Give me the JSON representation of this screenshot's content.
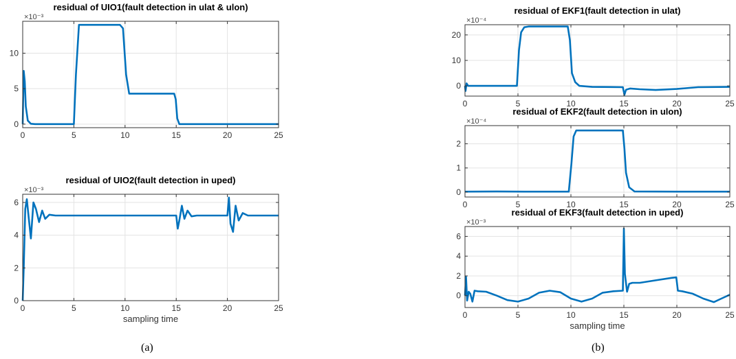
{
  "figure": {
    "caption_a": "(a)",
    "caption_b": "(b)"
  },
  "chart_data": [
    {
      "id": "uio1",
      "type": "line",
      "title": "residual of UIO1(fault detection in ulat & ulon)",
      "xlabel": "",
      "ylabel": "",
      "exponent_label": "×10⁻³",
      "xlim": [
        0,
        25
      ],
      "ylim": [
        -0.5,
        14.5
      ],
      "xticks": [
        0,
        5,
        10,
        15,
        20,
        25
      ],
      "yticks": [
        0,
        5,
        10
      ],
      "grid": true,
      "series": [
        {
          "x": [
            0,
            0.1,
            0.2,
            0.3,
            0.5,
            0.8,
            1.2,
            2,
            5,
            5.2,
            5.5,
            6,
            9.5,
            9.8,
            10.1,
            10.4,
            12,
            14.8,
            14.95,
            15.1,
            15.3,
            20,
            25
          ],
          "y": [
            0,
            7.5,
            6.0,
            2.5,
            0.5,
            0.05,
            0,
            0,
            0,
            7,
            14,
            14,
            14,
            13.5,
            7,
            4.3,
            4.3,
            4.3,
            3.5,
            0.8,
            0,
            0,
            0
          ]
        }
      ]
    },
    {
      "id": "uio2",
      "type": "line",
      "title": "residual of UIO2(fault detection in uped)",
      "xlabel": "sampling time",
      "ylabel": "",
      "exponent_label": "×10⁻³",
      "xlim": [
        0,
        25
      ],
      "ylim": [
        0,
        6.5
      ],
      "xticks": [
        0,
        5,
        10,
        15,
        20,
        25
      ],
      "yticks": [
        0,
        2,
        4,
        6
      ],
      "grid": true,
      "series": [
        {
          "x": [
            0,
            0.1,
            0.25,
            0.4,
            0.6,
            0.8,
            1.05,
            1.3,
            1.6,
            1.9,
            2.2,
            2.6,
            3.2,
            15,
            15.15,
            15.3,
            15.55,
            15.8,
            16.1,
            16.5,
            17,
            20,
            20.15,
            20.3,
            20.55,
            20.8,
            21.1,
            21.5,
            22,
            25
          ],
          "y": [
            0,
            2.0,
            5.6,
            6.2,
            5.0,
            3.8,
            6.0,
            5.6,
            4.8,
            5.5,
            5.0,
            5.25,
            5.2,
            5.2,
            4.4,
            4.9,
            5.8,
            5.0,
            5.5,
            5.15,
            5.2,
            5.2,
            6.3,
            4.7,
            4.2,
            5.8,
            4.9,
            5.35,
            5.2,
            5.2
          ]
        }
      ]
    },
    {
      "id": "ekf1",
      "type": "line",
      "title": "residual of EKF1(fault detection in ulat)",
      "xlabel": "",
      "ylabel": "",
      "exponent_label": "×10⁻⁴",
      "xlim": [
        0,
        25
      ],
      "ylim": [
        -4,
        24
      ],
      "xticks": [
        0,
        5,
        10,
        15,
        20,
        25
      ],
      "yticks": [
        0,
        10,
        20
      ],
      "grid": true,
      "series": [
        {
          "x": [
            0,
            0.05,
            0.15,
            0.3,
            2,
            4.9,
            5.1,
            5.3,
            5.6,
            6,
            9.7,
            9.9,
            10.1,
            10.4,
            10.8,
            12,
            14.9,
            15.05,
            15.2,
            15.6,
            16.5,
            18,
            20,
            22,
            25
          ],
          "y": [
            0,
            -2,
            1,
            0,
            0,
            0,
            14,
            21,
            23,
            23.3,
            23.3,
            18,
            5,
            1.5,
            0,
            -0.4,
            -0.5,
            -3.5,
            -1.5,
            -1.0,
            -1.3,
            -1.6,
            -1.2,
            -0.5,
            -0.4
          ]
        }
      ]
    },
    {
      "id": "ekf2",
      "type": "line",
      "title": "residual of EKF2(fault detection in ulon)",
      "xlabel": "",
      "ylabel": "",
      "exponent_label": "×10⁻⁴",
      "xlim": [
        0,
        25
      ],
      "ylim": [
        -0.2,
        2.75
      ],
      "xticks": [
        0,
        5,
        10,
        15,
        20,
        25
      ],
      "yticks": [
        0,
        1,
        2
      ],
      "grid": true,
      "series": [
        {
          "x": [
            0,
            3,
            6,
            9.8,
            10.05,
            10.25,
            10.5,
            11,
            14.9,
            15.05,
            15.2,
            15.5,
            16,
            20,
            25
          ],
          "y": [
            0.02,
            0.03,
            0.02,
            0.02,
            1.2,
            2.3,
            2.55,
            2.55,
            2.55,
            1.8,
            0.8,
            0.2,
            0.03,
            0.02,
            0.02
          ]
        }
      ]
    },
    {
      "id": "ekf3",
      "type": "line",
      "title": "residual of EKF3(fault detection in uped)",
      "xlabel": "sampling time",
      "ylabel": "",
      "exponent_label": "×10⁻³",
      "xlim": [
        0,
        25
      ],
      "ylim": [
        -1.2,
        7
      ],
      "xticks": [
        0,
        5,
        10,
        15,
        20,
        25
      ],
      "yticks": [
        0,
        2,
        4,
        6
      ],
      "grid": true,
      "series": [
        {
          "x": [
            0,
            0.1,
            0.2,
            0.35,
            0.5,
            0.7,
            0.9,
            1.2,
            2,
            3,
            4,
            5,
            6,
            7,
            8,
            9,
            10,
            11,
            12,
            13,
            14,
            14.9,
            15,
            15.1,
            15.3,
            15.5,
            15.8,
            16.5,
            18,
            19.5,
            19.95,
            20.1,
            20.5,
            21.5,
            22.5,
            23.5,
            24.2,
            25
          ],
          "y": [
            0,
            1.9,
            -0.5,
            0.4,
            0.2,
            -0.6,
            0.5,
            0.45,
            0.4,
            0.0,
            -0.45,
            -0.6,
            -0.3,
            0.3,
            0.5,
            0.35,
            -0.3,
            -0.6,
            -0.3,
            0.3,
            0.45,
            0.5,
            6.8,
            2.2,
            0.4,
            1.2,
            1.3,
            1.3,
            1.55,
            1.8,
            1.85,
            0.5,
            0.45,
            0.2,
            -0.3,
            -0.65,
            -0.3,
            0.1
          ]
        }
      ]
    }
  ]
}
